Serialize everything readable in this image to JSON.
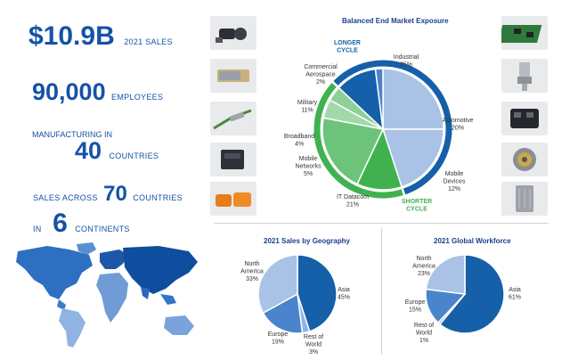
{
  "stats": {
    "sales_value": "$10.9B",
    "sales_label": "2021 SALES",
    "employees_value": "90,000",
    "employees_label": "EMPLOYEES",
    "manufacturing_label": "MANUFACTURING IN",
    "countries_value": "40",
    "countries_label": "COUNTRIES",
    "sales_across_label": "SALES ACROSS",
    "sales_countries_value": "70",
    "sales_countries_label": "COUNTRIES",
    "in_label": "IN",
    "continents_value": "6",
    "continents_label": "CONTINENTS"
  },
  "product_icons": [
    "connector-icon",
    "sfp-module-icon",
    "wire-terminal-icon",
    "relay-icon",
    "orange-connector-icon",
    "circuit-board-icon",
    "pressure-sensor-icon",
    "automotive-connector-icon",
    "round-sensor-icon",
    "gray-enclosure-icon"
  ],
  "colors": {
    "dark_blue": "#1560a9",
    "light_blue": "#a9c2e6",
    "mid_blue": "#6f9bd6",
    "green": "#3fb24f",
    "light_green": "#9ad6a2"
  },
  "chart_data": [
    {
      "type": "pie",
      "title": "Balanced End Market Exposure",
      "ring_labels": {
        "outer_top": [
          "LONGER",
          "CYCLE"
        ],
        "outer_bottom": [
          "SHORTER",
          "CYCLE"
        ]
      },
      "slices": [
        {
          "label": [
            "Industrial"
          ],
          "value": 25,
          "value_label": "25%",
          "group": "longer"
        },
        {
          "label": [
            "Automotive"
          ],
          "value": 20,
          "value_label": "20%",
          "group": "longer"
        },
        {
          "label": [
            "Mobile",
            "Devices"
          ],
          "value": 12,
          "value_label": "12%",
          "group": "shorter"
        },
        {
          "label": [
            "IT Datacom"
          ],
          "value": 21,
          "value_label": "21%",
          "group": "shorter"
        },
        {
          "label": [
            "Mobile",
            "Networks"
          ],
          "value": 5,
          "value_label": "5%",
          "group": "shorter"
        },
        {
          "label": [
            "Broadband"
          ],
          "value": 4,
          "value_label": "4%",
          "group": "shorter"
        },
        {
          "label": [
            "Military"
          ],
          "value": 11,
          "value_label": "11%",
          "group": "longer"
        },
        {
          "label": [
            "Commercial",
            "Aerospace"
          ],
          "value": 2,
          "value_label": "2%",
          "group": "longer"
        }
      ]
    },
    {
      "type": "pie",
      "title": "2021 Sales by Geography",
      "slices": [
        {
          "label": [
            "Asia"
          ],
          "value": 45,
          "value_label": "45%"
        },
        {
          "label": [
            "Rest of",
            "World"
          ],
          "value": 3,
          "value_label": "3%"
        },
        {
          "label": [
            "Europe"
          ],
          "value": 19,
          "value_label": "19%"
        },
        {
          "label": [
            "North",
            "America"
          ],
          "value": 33,
          "value_label": "33%"
        }
      ]
    },
    {
      "type": "pie",
      "title": "2021 Global Workforce",
      "slices": [
        {
          "label": [
            "Asia"
          ],
          "value": 61,
          "value_label": "61%"
        },
        {
          "label": [
            "Rest of",
            "World"
          ],
          "value": 1,
          "value_label": "1%"
        },
        {
          "label": [
            "Europe"
          ],
          "value": 15,
          "value_label": "15%"
        },
        {
          "label": [
            "North",
            "America"
          ],
          "value": 23,
          "value_label": "23%"
        }
      ]
    }
  ]
}
